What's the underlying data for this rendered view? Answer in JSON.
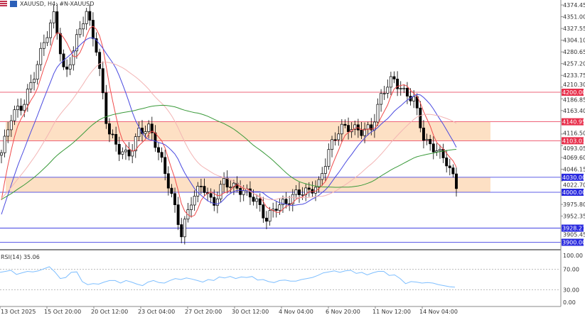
{
  "header": {
    "symbol": "XAUUSD",
    "timeframe": "H4",
    "description": "#N-XAUUSD",
    "title": "XAUUSD, H4:  #N-XAUUSD"
  },
  "colors": {
    "bull": "#ffffff",
    "bear": "#000000",
    "zone": "#fde0c4",
    "red_line": "#e8304c",
    "blue_line": "#2a2adf",
    "ma_fast": "#f04a4a",
    "ma_mid": "#4a4ae0",
    "ma_slow": "#f3b4b4",
    "ma_long": "#3a9a3a",
    "rsi": "#7fbfff"
  },
  "chart_data": {
    "type": "candlestick",
    "price_axis": {
      "ticks": [
        "4374.45",
        "4351.00",
        "4327.55",
        "4304.10",
        "4280.65",
        "4257.20",
        "4233.75",
        "4210.30",
        "4186.85",
        "4163.40",
        "4116.50",
        "4093.05",
        "4069.60",
        "4046.15",
        "4022.70",
        "3975.80",
        "3952.35",
        "3905.45"
      ],
      "range": [
        3900,
        4380
      ]
    },
    "time_axis": [
      "13 Oct 2025",
      "15 Oct 20:00",
      "20 Oct 12:00",
      "23 Oct 04:00",
      "27 Oct 20:00",
      "30 Oct 12:00",
      "4 Nov 04:00",
      "6 Nov 20:00",
      "11 Nov 12:00",
      "14 Nov 04:00"
    ],
    "close_path": [
      4079,
      4157,
      4172,
      4228,
      4299,
      4356,
      4228,
      4299,
      4363,
      4285,
      4129,
      4087,
      4072,
      4122,
      4129,
      4072,
      4001,
      3916,
      3987,
      4016,
      3973,
      4023,
      4009,
      4001,
      3987,
      3945,
      3973,
      3980,
      4001,
      4001,
      4016,
      4087,
      4129,
      4129,
      4122,
      4129,
      4200,
      4228,
      4200,
      4186,
      4101,
      4087,
      4065,
      4013
    ],
    "zones": [
      {
        "from": 4103.03,
        "to": 4140.95
      },
      {
        "from": 4000.0,
        "to": 4030.0
      }
    ],
    "levels": [
      {
        "value": "4200.00",
        "kind": "resistance"
      },
      {
        "value": "4140.95",
        "kind": "resistance"
      },
      {
        "value": "4103.03",
        "kind": "resistance"
      },
      {
        "value": "4030.00",
        "kind": "support"
      },
      {
        "value": "4000.00",
        "kind": "support"
      },
      {
        "value": "3928.27",
        "kind": "support"
      },
      {
        "value": "3900.00",
        "kind": "support"
      }
    ],
    "rsi": {
      "label": "RSI(14) 35.06",
      "period": 14,
      "last": 35.06,
      "ticks": [
        "100.00",
        "70.00",
        "30.00",
        "0.00"
      ],
      "values": [
        64,
        66,
        68,
        60,
        63,
        66,
        65,
        67,
        71,
        75,
        65,
        52,
        54,
        64,
        65,
        46,
        40,
        42,
        41,
        45,
        48,
        48,
        43,
        48,
        45,
        41,
        38,
        45,
        48,
        44,
        43,
        48,
        52,
        50,
        53,
        51,
        48,
        45,
        50,
        48,
        55,
        53,
        56,
        52,
        55,
        54,
        56,
        49,
        50,
        46,
        44,
        48,
        49,
        47,
        47,
        50,
        52,
        54,
        58,
        63,
        65,
        67,
        64,
        67,
        68,
        62,
        64,
        59,
        63,
        66,
        66,
        58,
        59,
        52,
        42,
        46,
        45,
        43,
        44,
        43,
        40,
        38,
        36,
        35.06
      ]
    }
  }
}
